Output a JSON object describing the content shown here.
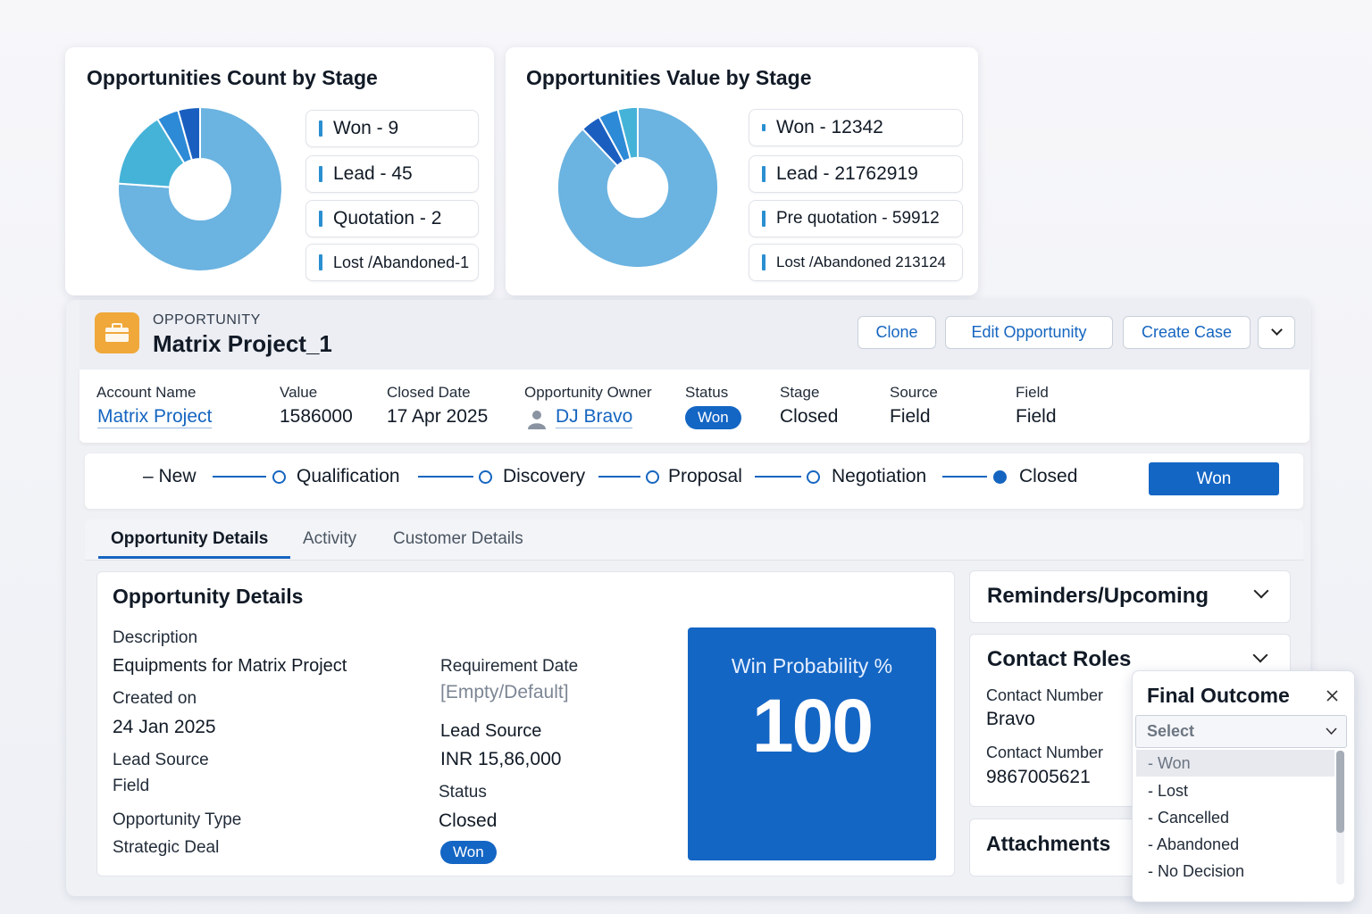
{
  "charts": {
    "count": {
      "title": "Opportunities Count by Stage",
      "legend": [
        "Won - 9",
        "Lead - 45",
        "Quotation - 2",
        "Lost /Abandoned-1"
      ]
    },
    "value": {
      "title": "Opportunities Value by Stage",
      "legend": [
        "Won - 12342",
        "Lead - 21762919",
        "Pre quotation - 59912",
        "Lost /Abandoned 213124"
      ]
    }
  },
  "chart_data": [
    {
      "type": "pie",
      "title": "Opportunities Count by Stage",
      "categories": [
        "Won",
        "Lead",
        "Quotation",
        "Lost /Abandoned"
      ],
      "values": [
        9,
        45,
        2,
        1
      ],
      "colors": [
        "#45b3d8",
        "#6bb3e0",
        "#2d8ad6",
        "#1a5fc0"
      ],
      "legend_position": "right"
    },
    {
      "type": "pie",
      "title": "Opportunities Value by Stage",
      "categories": [
        "Won",
        "Lead",
        "Pre quotation",
        "Lost /Abandoned"
      ],
      "values": [
        12342,
        21762919,
        59912,
        213124
      ],
      "colors": [
        "#45b3d8",
        "#6bb3e0",
        "#2d8ad6",
        "#1a5fc0"
      ],
      "legend_position": "right"
    }
  ],
  "header": {
    "eyebrow": "OPPORTUNITY",
    "title": "Matrix Project_1",
    "buttons": [
      "Clone",
      "Edit Opportunity",
      "Create Case"
    ]
  },
  "highlights": {
    "account_label": "Account Name",
    "account_value": "Matrix Project",
    "value_label": "Value",
    "value_value": "1586000",
    "closed_label": "Closed Date",
    "closed_value": "17 Apr 2025",
    "owner_label": "Opportunity Owner",
    "owner_value": "DJ Bravo",
    "status_label": "Status",
    "status_value": "Won",
    "stage_label": "Stage",
    "stage_value": "Closed",
    "source_label": "Source",
    "source_value": "Field",
    "field_label": "Field",
    "field_value": "Field"
  },
  "path": {
    "steps": [
      "New",
      "Qualification",
      "Discovery",
      "Proposal",
      "Negotiation",
      "Closed"
    ],
    "button": "Won"
  },
  "tabs": [
    "Opportunity Details",
    "Activity",
    "Customer Details"
  ],
  "details": {
    "title": "Opportunity Details",
    "description_label": "Description",
    "description_value": "Equipments for Matrix Project",
    "created_label": "Created on",
    "created_value": "24 Jan 2025",
    "lead_source_label": "Lead Source",
    "lead_source_value": "Field",
    "type_label": "Opportunity Type",
    "type_value": "Strategic Deal",
    "req_date_label": "Requirement Date",
    "req_date_value": "[Empty/Default]",
    "lead_source2_label": "Lead Source",
    "lead_source2_value": "INR 15,86,000",
    "status_label": "Status",
    "status_value": "Closed",
    "status_badge": "Won",
    "win_label": "Win Probability %",
    "win_value": "100"
  },
  "side": {
    "reminders": "Reminders/Upcoming",
    "contact_roles": "Contact Roles",
    "contact1_label": "Contact Number",
    "contact1_value": "Bravo",
    "contact2_label": "Contact Number",
    "contact2_value": "9867005621",
    "attachments": "Attachments"
  },
  "outcome": {
    "title": "Final Outcome",
    "placeholder": "Select",
    "options": [
      "- Won",
      "- Lost",
      "- Cancelled",
      "- Abandoned",
      "- No Decision"
    ]
  },
  "colors": {
    "accent": "#1466c4",
    "icon": "#f0a83a"
  }
}
